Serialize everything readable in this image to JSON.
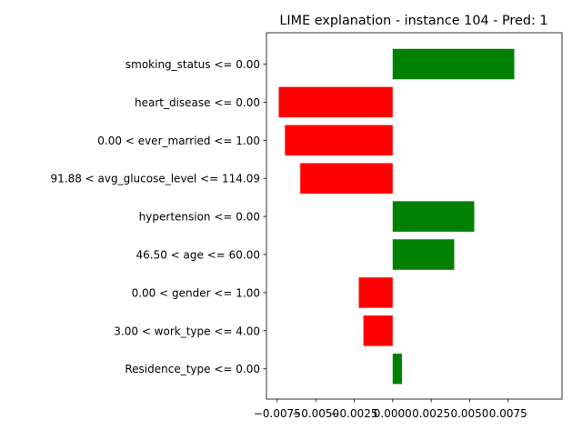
{
  "chart_data": {
    "type": "bar",
    "orientation": "horizontal",
    "title": "LIME explanation - instance 104 - Pred: 1",
    "xlabel": "",
    "ylabel": "",
    "xlim": [
      -0.0082,
      0.011
    ],
    "grid": false,
    "legend": "none",
    "colors": {
      "positive": "#008000",
      "negative": "#ff0000"
    },
    "x_ticks": [
      -0.0075,
      -0.005,
      -0.0025,
      0.0,
      0.0025,
      0.005,
      0.0075
    ],
    "x_tick_labels": [
      "−0.0075",
      "−0.0050",
      "−0.0025",
      "0.0000",
      "0.0025",
      "0.0050",
      "0.0075"
    ],
    "categories": [
      "smoking_status <= 0.00",
      "heart_disease <= 0.00",
      "0.00 < ever_married <= 1.00",
      "91.88 < avg_glucose_level <= 114.09",
      "hypertension <= 0.00",
      "46.50 < age <= 60.00",
      "0.00 < gender <= 1.00",
      "3.00 < work_type <= 4.00",
      "Residence_type <= 0.00"
    ],
    "values": [
      0.0079,
      -0.0074,
      -0.007,
      -0.006,
      0.0053,
      0.004,
      -0.0022,
      -0.0019,
      0.0006
    ]
  }
}
